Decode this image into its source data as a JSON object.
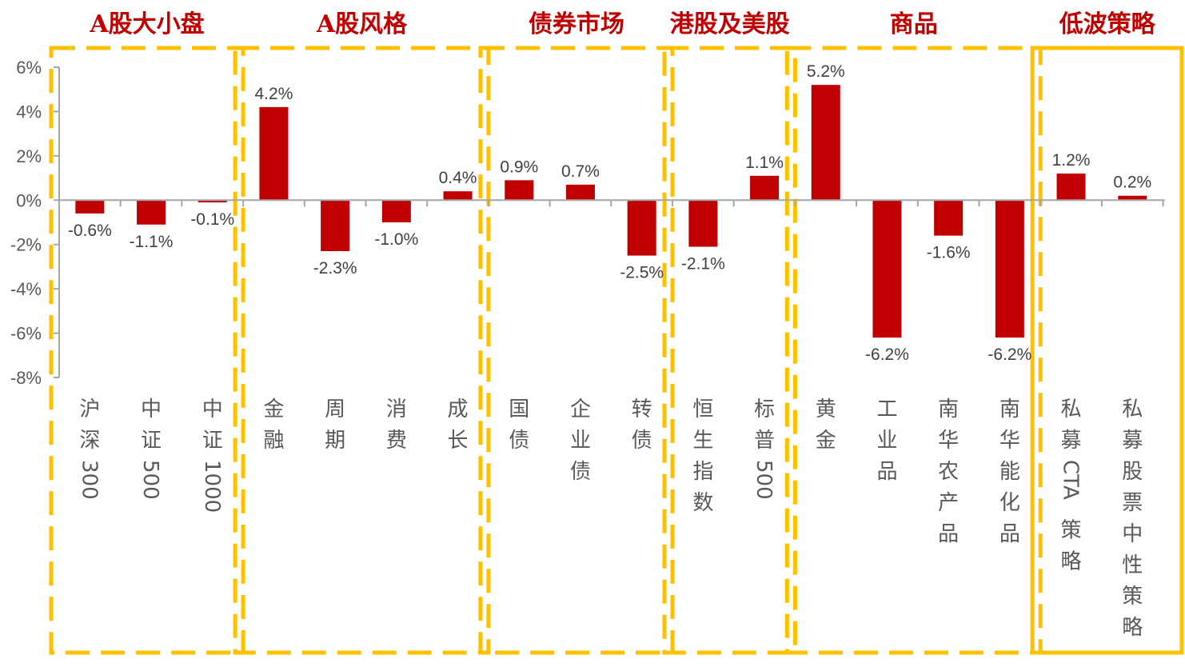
{
  "chart_data": {
    "type": "bar",
    "categories": [
      {
        "label": "沪深300",
        "lines": [
          "沪",
          "深",
          "300"
        ]
      },
      {
        "label": "中证500",
        "lines": [
          "中",
          "证",
          "500"
        ]
      },
      {
        "label": "中证1000",
        "lines": [
          "中",
          "证",
          "1000"
        ]
      },
      {
        "label": "金融",
        "lines": [
          "金",
          "融"
        ]
      },
      {
        "label": "周期",
        "lines": [
          "周",
          "期"
        ]
      },
      {
        "label": "消费",
        "lines": [
          "消",
          "费"
        ]
      },
      {
        "label": "成长",
        "lines": [
          "成",
          "长"
        ]
      },
      {
        "label": "国债",
        "lines": [
          "国",
          "债"
        ]
      },
      {
        "label": "企业债",
        "lines": [
          "企",
          "业",
          "债"
        ]
      },
      {
        "label": "转债",
        "lines": [
          "转",
          "债"
        ]
      },
      {
        "label": "恒生指数",
        "lines": [
          "恒",
          "生",
          "指",
          "数"
        ]
      },
      {
        "label": "标普500",
        "lines": [
          "标",
          "普",
          "500"
        ]
      },
      {
        "label": "黄金",
        "lines": [
          "黄",
          "金"
        ]
      },
      {
        "label": "工业品",
        "lines": [
          "工",
          "业",
          "品"
        ]
      },
      {
        "label": "南华农产品",
        "lines": [
          "南",
          "华",
          "农",
          "产",
          "品"
        ]
      },
      {
        "label": "南华能化品",
        "lines": [
          "南",
          "华",
          "能",
          "化",
          "品"
        ]
      },
      {
        "label": "私募CTA策略",
        "lines": [
          "私",
          "募",
          "CTA",
          "策",
          "略"
        ]
      },
      {
        "label": "私募股票中性策略",
        "lines": [
          "私",
          "募",
          "股",
          "票",
          "中",
          "性",
          "策",
          "略"
        ]
      }
    ],
    "values": [
      -0.6,
      -1.1,
      -0.1,
      4.2,
      -2.3,
      -1.0,
      0.4,
      0.9,
      0.7,
      -2.5,
      -2.1,
      1.1,
      5.2,
      -6.2,
      -1.6,
      -6.2,
      1.2,
      0.2
    ],
    "value_labels": [
      "-0.6%",
      "-1.1%",
      "-0.1%",
      "4.2%",
      "-2.3%",
      "-1.0%",
      "0.4%",
      "0.9%",
      "0.7%",
      "-2.5%",
      "-2.1%",
      "1.1%",
      "5.2%",
      "-6.2%",
      "-1.6%",
      "-6.2%",
      "1.2%",
      "0.2%"
    ],
    "ylim": [
      -8,
      6
    ],
    "yticks": [
      6,
      4,
      2,
      0,
      -2,
      -4,
      -6,
      -8
    ],
    "ytick_labels": [
      "6%",
      "4%",
      "2%",
      "0%",
      "-2%",
      "-4%",
      "-6%",
      "-8%"
    ],
    "bar_color": "#c00000",
    "group_box_color": "#ffc000",
    "group_title_color": "#c00000",
    "groups": [
      {
        "title": "A股大小盘",
        "start": 0,
        "end": 2,
        "box_style": "dashed"
      },
      {
        "title": "A股风格",
        "start": 3,
        "end": 6,
        "box_style": "dashed"
      },
      {
        "title": "债券市场",
        "start": 7,
        "end": 9,
        "box_style": "dashed"
      },
      {
        "title": "港股及美股",
        "start": 10,
        "end": 11,
        "box_style": "dashed"
      },
      {
        "title": "商品",
        "start": 12,
        "end": 15,
        "box_style": "dashed"
      },
      {
        "title": "低波策略",
        "start": 16,
        "end": 17,
        "box_style": "solid"
      }
    ]
  }
}
